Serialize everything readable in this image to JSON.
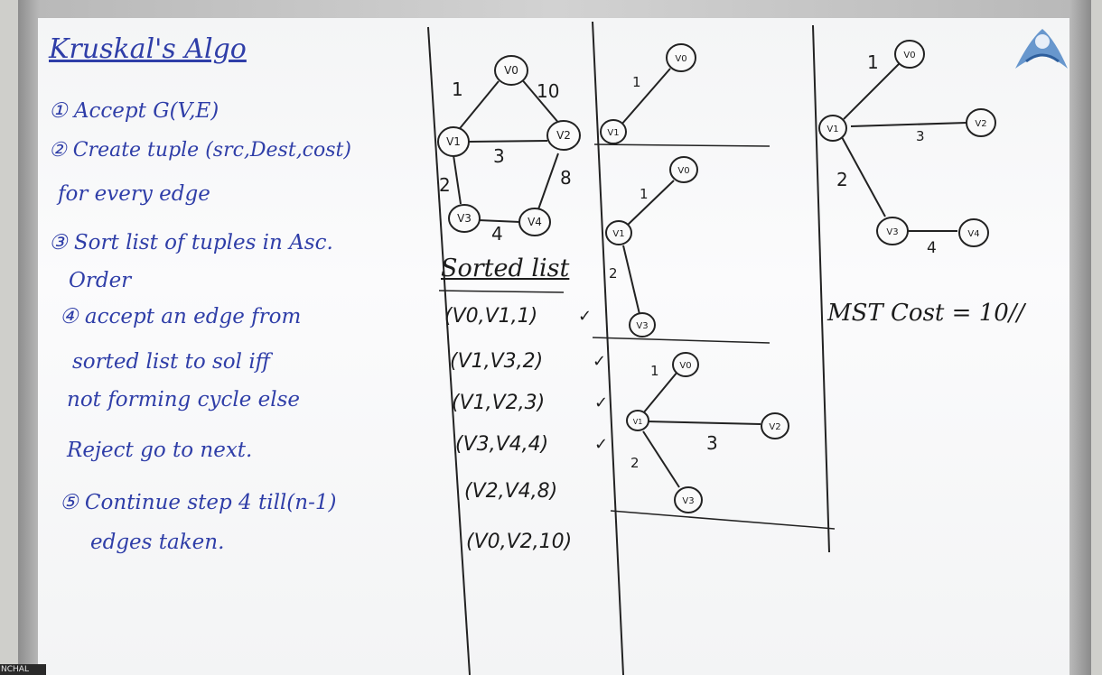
{
  "left_panel": {
    "title": "Kruskal's Algo",
    "steps": [
      "① Accept G(V,E)",
      "② Create tuple (src,Dest,cost)",
      "for every edge",
      "③ Sort list of tuples in Asc.",
      "Order",
      "④ accept an edge from",
      "sorted list to sol iff",
      "not forming cycle else",
      "Reject go to next.",
      "⑤ Continue step 4 till(n-1)",
      "edges taken."
    ]
  },
  "graph": {
    "nodes": [
      "V0",
      "V1",
      "V2",
      "V3",
      "V4"
    ],
    "edge_costs": [
      "1",
      "10",
      "3",
      "2",
      "8",
      "4"
    ]
  },
  "sorted_list": {
    "title": "Sorted list",
    "tuples": [
      "(V0,V1,1)",
      "(V1,V3,2)",
      "(V1,V2,3)",
      "(V3,V4,4)",
      "(V2,V4,8)",
      "(V0,V2,10)"
    ],
    "accepted_marks": [
      "✓",
      "✓",
      "✓",
      "✓"
    ]
  },
  "steps_trees": {
    "step1": {
      "edge_cost": "1",
      "nodes": [
        "V0",
        "V1"
      ]
    },
    "step2": {
      "edge_costs": [
        "1",
        "2"
      ],
      "nodes": [
        "V0",
        "V1",
        "V3"
      ]
    },
    "step3": {
      "edge_costs": [
        "1",
        "3",
        "2"
      ],
      "nodes": [
        "V0",
        "V1",
        "V2",
        "V3"
      ]
    }
  },
  "final_tree": {
    "edge_costs": [
      "1",
      "3",
      "2",
      "4"
    ],
    "nodes": [
      "V0",
      "V1",
      "V2",
      "V3",
      "V4"
    ],
    "mst_cost": "MST Cost = 10//"
  },
  "corner_label": "NCHAL"
}
